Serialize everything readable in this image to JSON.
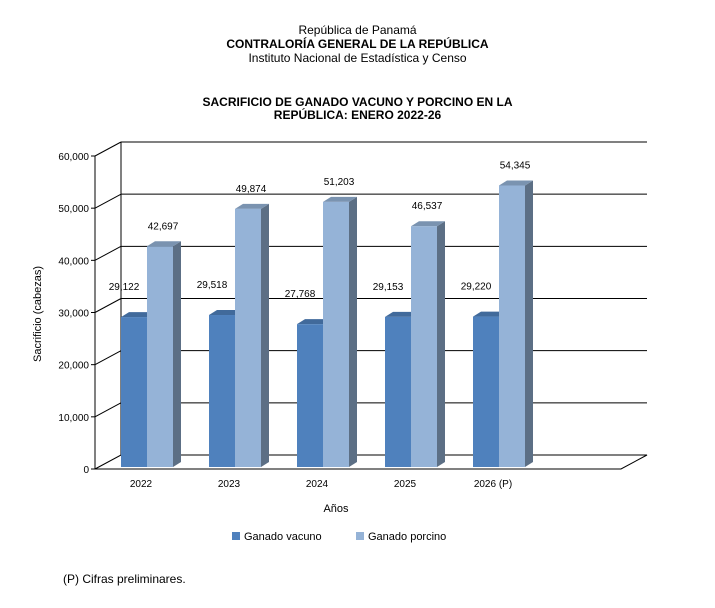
{
  "header": {
    "country": "República de Panamá",
    "organization": "CONTRALORÍA GENERAL DE LA REPÚBLICA",
    "institute": "Instituto Nacional de Estadística y Censo"
  },
  "footnote": "(P) Cifras preliminares.",
  "colors": {
    "vacuno": "#4f81bd",
    "porcino": "#95b3d7",
    "gridline": "#000000"
  },
  "chart_data": {
    "type": "bar",
    "title_lines": [
      "SACRIFICIO DE GANADO VACUNO Y PORCINO EN LA",
      "REPÚBLICA: ENERO 2022-26"
    ],
    "xlabel": "Años",
    "ylabel": "Sacrificio (cabezas)",
    "categories": [
      "2022",
      "2023",
      "2024",
      "2025",
      "2026 (P)"
    ],
    "ylim": [
      0,
      60000
    ],
    "yticks": [
      "0",
      "10,000",
      "20,000",
      "30,000",
      "40,000",
      "50,000",
      "60,000"
    ],
    "grid": true,
    "legend_position": "bottom",
    "series": [
      {
        "name": "Ganado vacuno",
        "values": [
          29122,
          29518,
          27768,
          29153,
          29220
        ],
        "labels": [
          "29,122",
          "29,518",
          "27,768",
          "29,153",
          "29,220"
        ]
      },
      {
        "name": "Ganado porcino",
        "values": [
          42697,
          49874,
          51203,
          46537,
          54345
        ],
        "labels": [
          "42,697",
          "49,874",
          "51,203",
          "46,537",
          "54,345"
        ]
      }
    ]
  }
}
